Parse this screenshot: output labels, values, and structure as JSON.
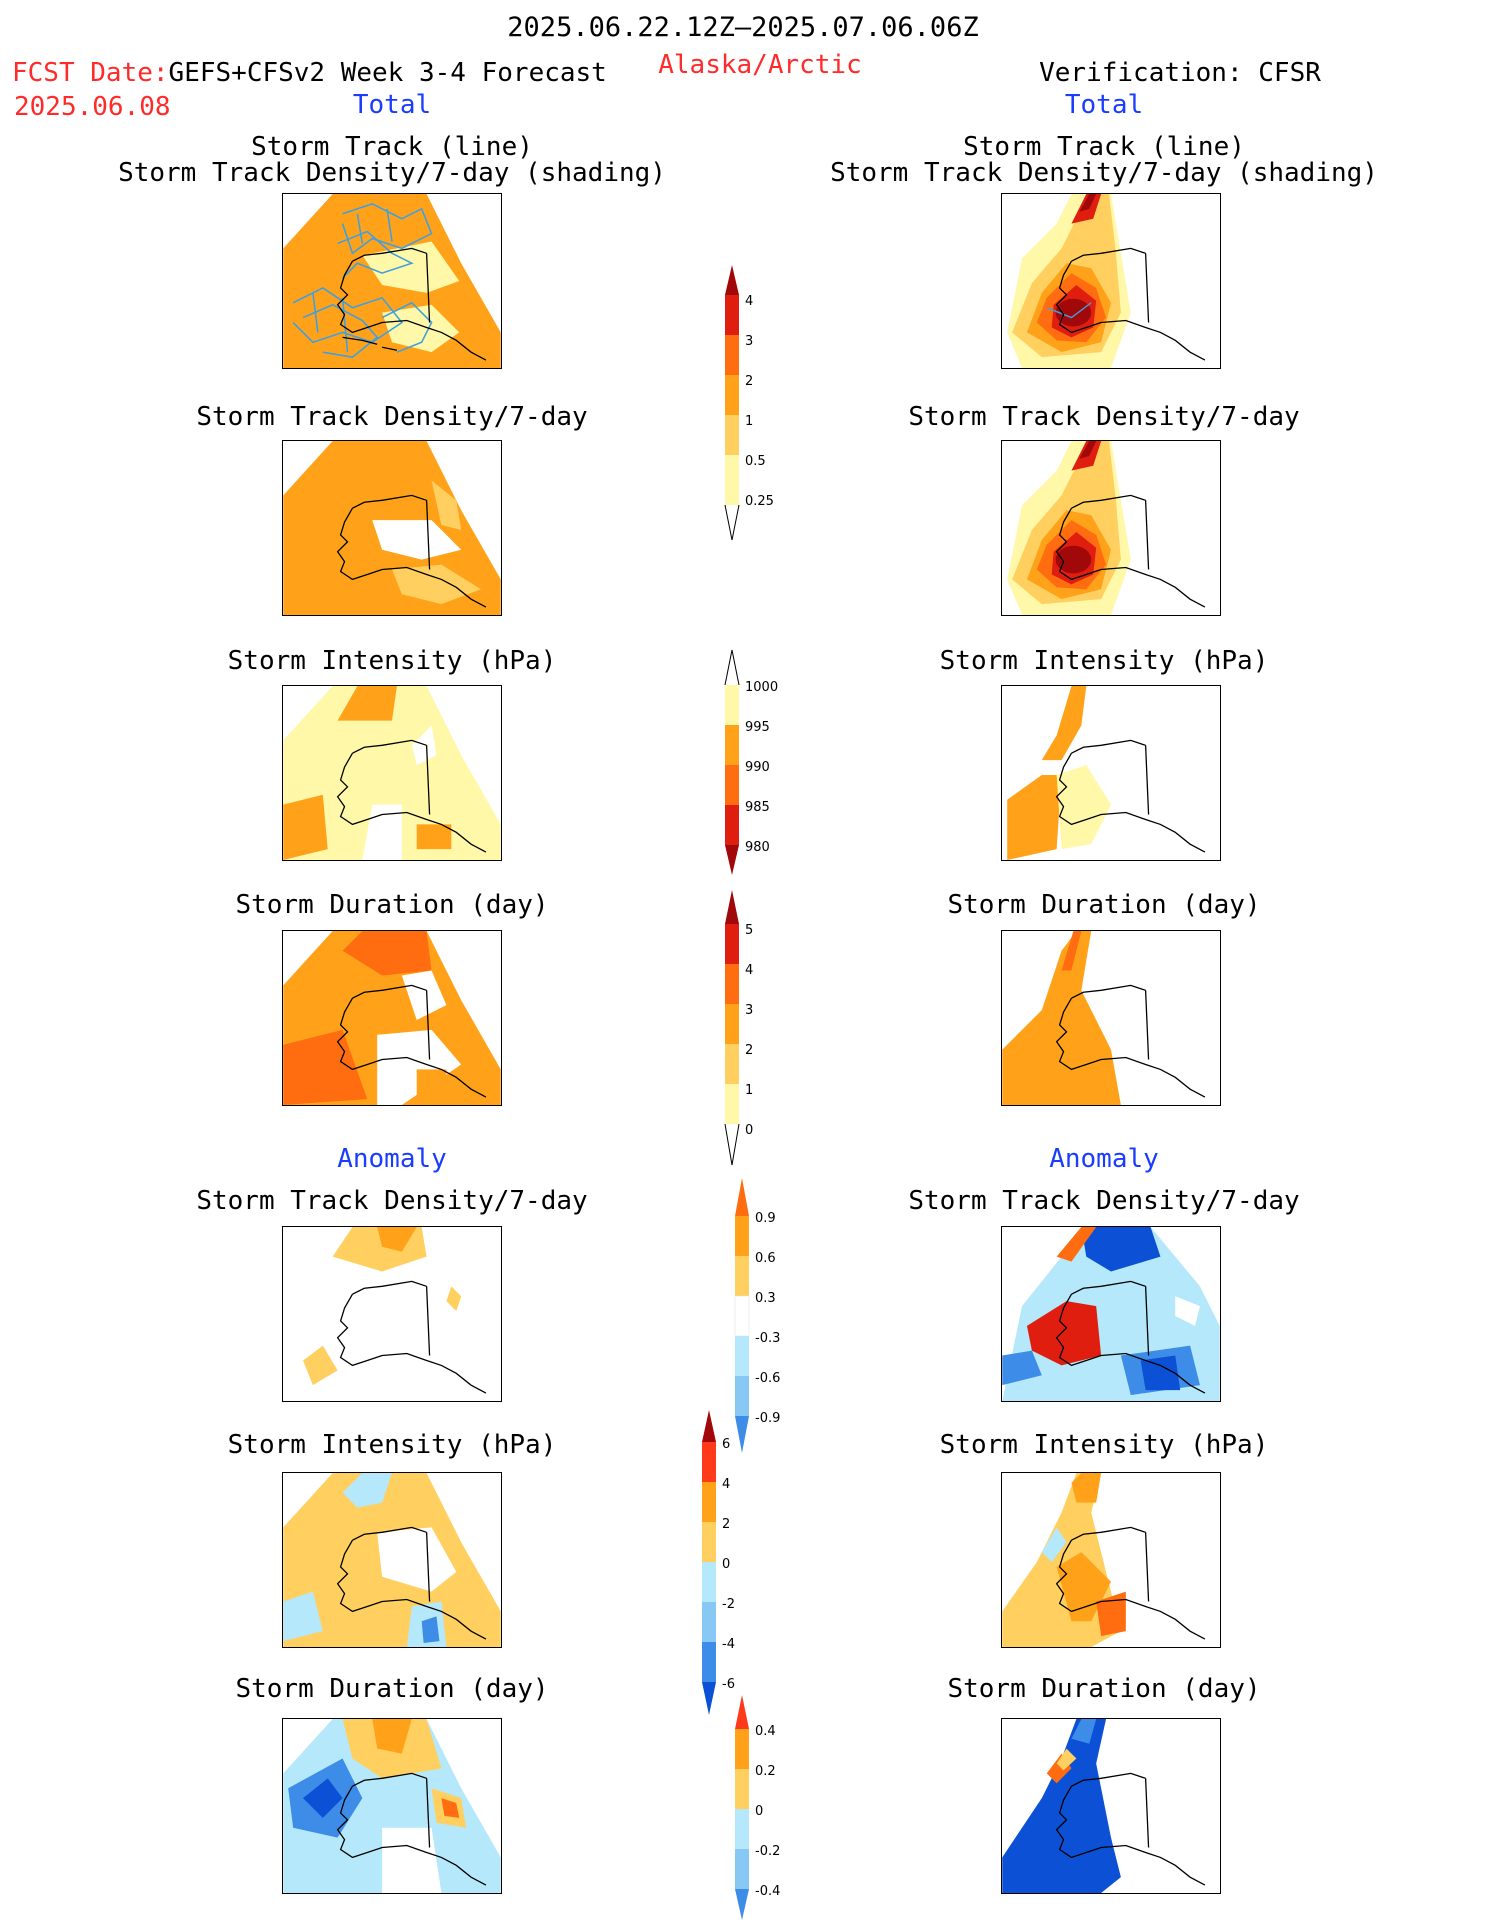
{
  "header": {
    "period": "2025.06.22.12Z–2025.07.06.06Z",
    "fcst_label": "FCST Date:",
    "fcst_model": "GEFS+CFSv2 Week 3-4 Forecast",
    "fcst_date": "2025.06.08",
    "region": "Alaska/Arctic",
    "verification": "Verification: CFSR",
    "total_left": "Total",
    "total_right": "Total",
    "anomaly_left": "Anomaly",
    "anomaly_right": "Anomaly"
  },
  "panel_titles": {
    "track_line": "Storm Track (line)",
    "track_shading": "Storm Track Density/7-day (shading)",
    "density": "Storm Track Density/7-day",
    "intensity": "Storm Intensity (hPa)",
    "duration": "Storm Duration (day)"
  },
  "colorbars": {
    "density_total": [
      "4",
      "3",
      "2",
      "1",
      "0.5",
      "0.25"
    ],
    "intensity_total": [
      "1000",
      "995",
      "990",
      "985",
      "980"
    ],
    "duration_total": [
      "5",
      "4",
      "3",
      "2",
      "1",
      "0"
    ],
    "density_anom": [
      "0.9",
      "0.6",
      "0.3",
      "-0.3",
      "-0.6",
      "-0.9"
    ],
    "intensity_anom": [
      "6",
      "4",
      "2",
      "0",
      "-2",
      "-4",
      "-6"
    ],
    "duration_anom": [
      "0.4",
      "0.2",
      "0",
      "-0.2",
      "-0.4"
    ]
  },
  "colors": {
    "pale_yellow": "#fff8a8",
    "light_orange": "#ffd060",
    "orange": "#ffa21a",
    "dark_orange": "#ff6d10",
    "red": "#e01e0f",
    "dark_red": "#a0080a",
    "light_blue": "#b4e8fa",
    "mid_blue": "#88c8f4",
    "blue": "#3c8ce8",
    "dark_blue": "#0c50d6",
    "track_line": "#3ea0e0"
  }
}
